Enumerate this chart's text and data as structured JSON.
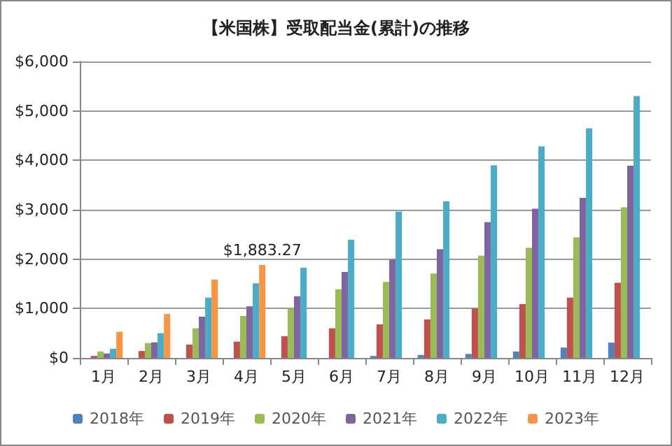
{
  "chart_data": {
    "type": "bar",
    "title": "【米国株】受取配当金(累計)の推移",
    "categories": [
      "1月",
      "2月",
      "3月",
      "4月",
      "5月",
      "6月",
      "7月",
      "8月",
      "9月",
      "10月",
      "11月",
      "12月"
    ],
    "series": [
      {
        "name": "2018年",
        "color": "#4f81bd",
        "values": [
          0,
          0,
          0,
          0,
          0,
          0,
          40,
          60,
          80,
          130,
          210,
          310
        ]
      },
      {
        "name": "2019年",
        "color": "#c0504d",
        "values": [
          40,
          140,
          270,
          330,
          440,
          600,
          680,
          780,
          1000,
          1090,
          1220,
          1520
        ]
      },
      {
        "name": "2020年",
        "color": "#9bbb59",
        "values": [
          130,
          300,
          600,
          850,
          1010,
          1390,
          1540,
          1710,
          2070,
          2230,
          2440,
          3050
        ]
      },
      {
        "name": "2021年",
        "color": "#8064a2",
        "values": [
          90,
          315,
          835,
          1045,
          1250,
          1740,
          1990,
          2200,
          2750,
          3020,
          3240,
          3890
        ]
      },
      {
        "name": "2022年",
        "color": "#4bacc6",
        "values": [
          185,
          500,
          1220,
          1510,
          1825,
          2390,
          2960,
          3170,
          3900,
          4280,
          4650,
          5300
        ]
      },
      {
        "name": "2023年",
        "color": "#f79646",
        "values": [
          530,
          890,
          1590,
          1883.27,
          null,
          null,
          null,
          null,
          null,
          null,
          null,
          null
        ],
        "value_labels": [
          null,
          null,
          null,
          "$1,883.27",
          null,
          null,
          null,
          null,
          null,
          null,
          null,
          null
        ]
      }
    ],
    "ylim": [
      0,
      6000
    ],
    "yticks": [
      {
        "value": 0,
        "label": "$0"
      },
      {
        "value": 1000,
        "label": "$1,000"
      },
      {
        "value": 2000,
        "label": "$2,000"
      },
      {
        "value": 3000,
        "label": "$3,000"
      },
      {
        "value": 4000,
        "label": "$4,000"
      },
      {
        "value": 5000,
        "label": "$5,000"
      },
      {
        "value": 6000,
        "label": "$6,000"
      }
    ],
    "grid": "y",
    "legend": "bottom"
  }
}
